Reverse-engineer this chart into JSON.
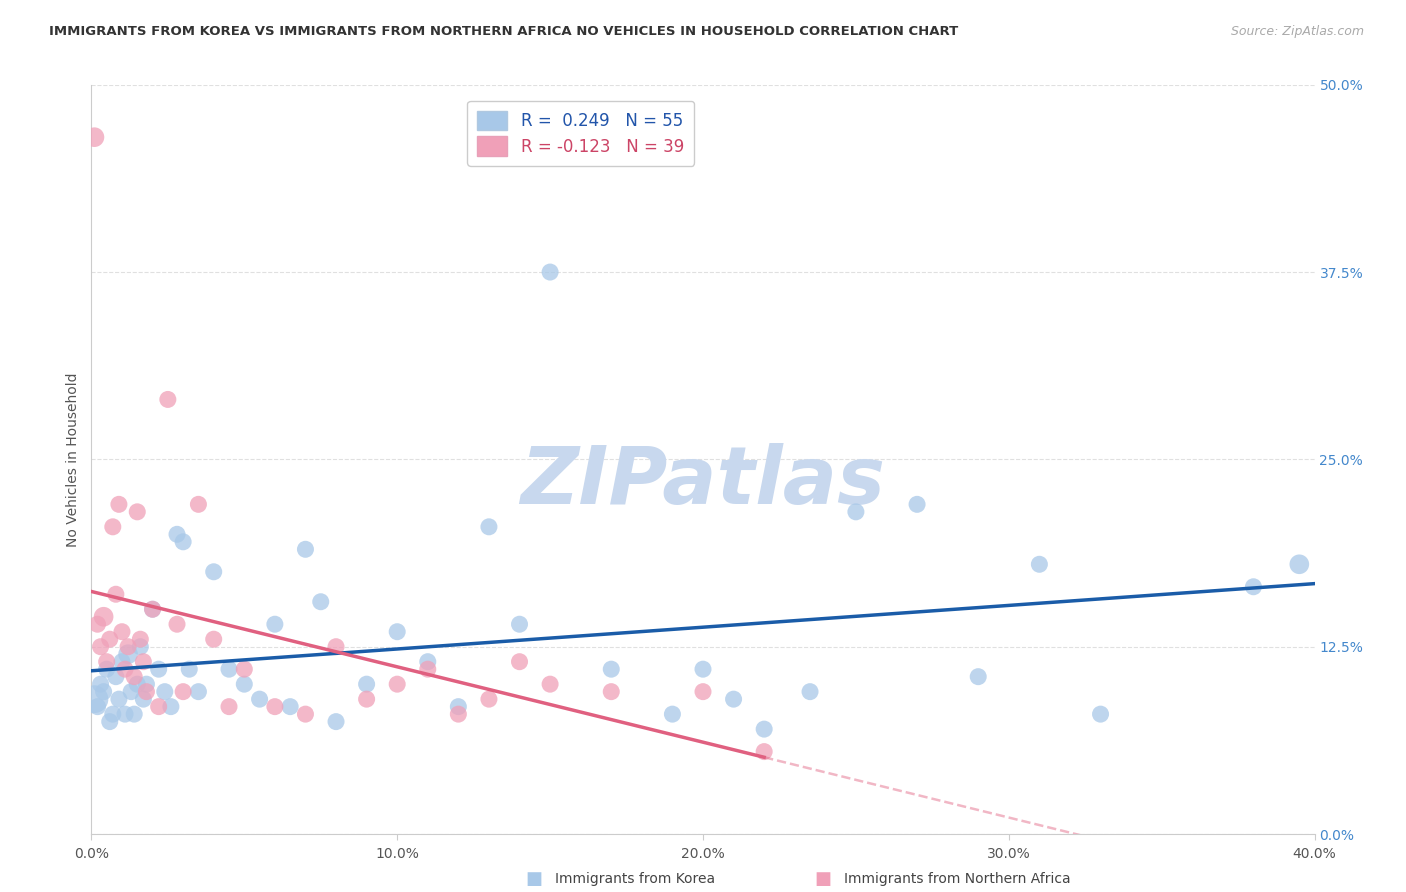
{
  "title": "IMMIGRANTS FROM KOREA VS IMMIGRANTS FROM NORTHERN AFRICA NO VEHICLES IN HOUSEHOLD CORRELATION CHART",
  "source": "Source: ZipAtlas.com",
  "ylabel": "No Vehicles in Household",
  "xlim": [
    0.0,
    40.0
  ],
  "ylim": [
    0.0,
    50.0
  ],
  "korea_R": 0.249,
  "korea_N": 55,
  "africa_R": -0.123,
  "africa_N": 39,
  "korea_color": "#a8c8e8",
  "africa_color": "#f0a0b8",
  "korea_line_color": "#1a5ca8",
  "africa_line_color": "#e06080",
  "korea_x": [
    0.1,
    0.2,
    0.3,
    0.4,
    0.5,
    0.6,
    0.7,
    0.8,
    0.9,
    1.0,
    1.1,
    1.2,
    1.3,
    1.4,
    1.5,
    1.6,
    1.7,
    1.8,
    2.0,
    2.2,
    2.4,
    2.6,
    2.8,
    3.0,
    3.2,
    3.5,
    4.0,
    4.5,
    5.0,
    5.5,
    6.0,
    6.5,
    7.0,
    7.5,
    8.0,
    9.0,
    10.0,
    11.0,
    12.0,
    13.0,
    14.0,
    15.0,
    17.0,
    19.0,
    20.0,
    21.0,
    22.0,
    23.5,
    25.0,
    27.0,
    29.0,
    31.0,
    33.0,
    38.0,
    39.5
  ],
  "korea_y": [
    9.0,
    8.5,
    10.0,
    9.5,
    11.0,
    7.5,
    8.0,
    10.5,
    9.0,
    11.5,
    8.0,
    12.0,
    9.5,
    8.0,
    10.0,
    12.5,
    9.0,
    10.0,
    15.0,
    11.0,
    9.5,
    8.5,
    20.0,
    19.5,
    11.0,
    9.5,
    17.5,
    11.0,
    10.0,
    9.0,
    14.0,
    8.5,
    19.0,
    15.5,
    7.5,
    10.0,
    13.5,
    11.5,
    8.5,
    20.5,
    14.0,
    37.5,
    11.0,
    8.0,
    11.0,
    9.0,
    7.0,
    9.5,
    21.5,
    22.0,
    10.5,
    18.0,
    8.0,
    16.5,
    18.0
  ],
  "korea_sizes": [
    400,
    150,
    150,
    150,
    150,
    150,
    150,
    150,
    150,
    150,
    150,
    200,
    150,
    150,
    150,
    150,
    150,
    150,
    150,
    150,
    150,
    150,
    150,
    150,
    150,
    150,
    150,
    150,
    150,
    150,
    150,
    150,
    150,
    150,
    150,
    150,
    150,
    150,
    150,
    150,
    150,
    150,
    150,
    150,
    150,
    150,
    150,
    150,
    150,
    150,
    150,
    150,
    150,
    150,
    200
  ],
  "africa_x": [
    0.1,
    0.2,
    0.3,
    0.4,
    0.5,
    0.6,
    0.7,
    0.8,
    0.9,
    1.0,
    1.1,
    1.2,
    1.4,
    1.5,
    1.6,
    1.7,
    1.8,
    2.0,
    2.2,
    2.5,
    2.8,
    3.0,
    3.5,
    4.0,
    4.5,
    5.0,
    6.0,
    7.0,
    8.0,
    9.0,
    10.0,
    11.0,
    12.0,
    13.0,
    14.0,
    15.0,
    17.0,
    20.0,
    22.0
  ],
  "africa_y": [
    46.5,
    14.0,
    12.5,
    14.5,
    11.5,
    13.0,
    20.5,
    16.0,
    22.0,
    13.5,
    11.0,
    12.5,
    10.5,
    21.5,
    13.0,
    11.5,
    9.5,
    15.0,
    8.5,
    29.0,
    14.0,
    9.5,
    22.0,
    13.0,
    8.5,
    11.0,
    8.5,
    8.0,
    12.5,
    9.0,
    10.0,
    11.0,
    8.0,
    9.0,
    11.5,
    10.0,
    9.5,
    9.5,
    5.5
  ],
  "africa_sizes": [
    200,
    150,
    150,
    200,
    150,
    150,
    150,
    150,
    150,
    150,
    150,
    150,
    150,
    150,
    150,
    150,
    150,
    150,
    150,
    150,
    150,
    150,
    150,
    150,
    150,
    150,
    150,
    150,
    150,
    150,
    150,
    150,
    150,
    150,
    150,
    150,
    150,
    150,
    150
  ],
  "africa_solid_end": 22.0,
  "africa_extend_to": 40.0,
  "watermark_text": "ZIPatlas",
  "watermark_color": "#c8d8ee",
  "background_color": "#ffffff",
  "grid_color": "#e0e0e0",
  "ytick_color": "#4488cc",
  "xtick_color": "#555555",
  "ylabel_color": "#555555",
  "title_color": "#333333",
  "source_color": "#aaaaaa",
  "legend_border_color": "#cccccc",
  "bottom_legend_items": [
    {
      "label": "Immigrants from Korea",
      "color": "#a8c8e8"
    },
    {
      "label": "Immigrants from Northern Africa",
      "color": "#f0a0b8"
    }
  ]
}
